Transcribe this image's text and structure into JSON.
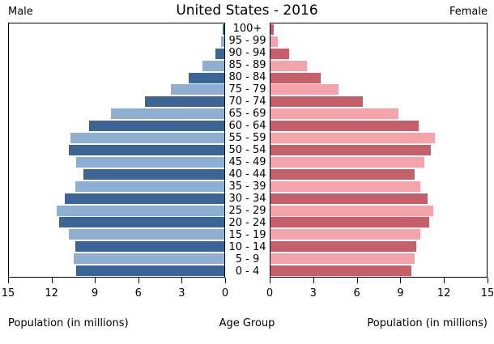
{
  "title": "United States - 2016",
  "left_header": "Male",
  "right_header": "Female",
  "axis": {
    "max": 15,
    "ticks_left": [
      15,
      12,
      9,
      6,
      3,
      0
    ],
    "ticks_right": [
      0,
      3,
      6,
      9,
      12,
      15
    ],
    "xlabel_left": "Population (in millions)",
    "xlabel_center": "Age Group",
    "xlabel_right": "Population (in millions)"
  },
  "colors": {
    "male_dark": "#3C6494",
    "male_light": "#8EAFD2",
    "female_dark": "#C5606A",
    "female_light": "#F3A4AA",
    "axis_line": "#000000"
  },
  "chart_data": {
    "type": "bar",
    "variant": "population-pyramid",
    "title": "United States - 2016",
    "xlabel": "Population (in millions)",
    "center_axis_label": "Age Group",
    "xlim": [
      0,
      15
    ],
    "grid": false,
    "legend_position": "top-corners",
    "categories": [
      "100+",
      "95 - 99",
      "90 - 94",
      "85 - 89",
      "80 - 84",
      "75 - 79",
      "70 - 74",
      "65 - 69",
      "60 - 64",
      "55 - 59",
      "50 - 54",
      "45 - 49",
      "40 - 44",
      "35 - 39",
      "30 - 34",
      "25 - 29",
      "20 - 24",
      "15 - 19",
      "10 - 14",
      "5 - 9",
      "0 - 4"
    ],
    "series": [
      {
        "name": "Male",
        "side": "left",
        "values": [
          0.1,
          0.25,
          0.6,
          1.5,
          2.5,
          3.7,
          5.5,
          7.9,
          9.4,
          10.7,
          10.8,
          10.3,
          9.8,
          10.4,
          11.1,
          11.7,
          11.5,
          10.8,
          10.4,
          10.5,
          10.3
        ]
      },
      {
        "name": "Female",
        "side": "right",
        "values": [
          0.2,
          0.5,
          1.3,
          2.5,
          3.5,
          4.7,
          6.4,
          8.9,
          10.3,
          11.4,
          11.1,
          10.7,
          10.0,
          10.4,
          10.9,
          11.3,
          11.0,
          10.4,
          10.1,
          10.0,
          9.8
        ]
      }
    ]
  }
}
